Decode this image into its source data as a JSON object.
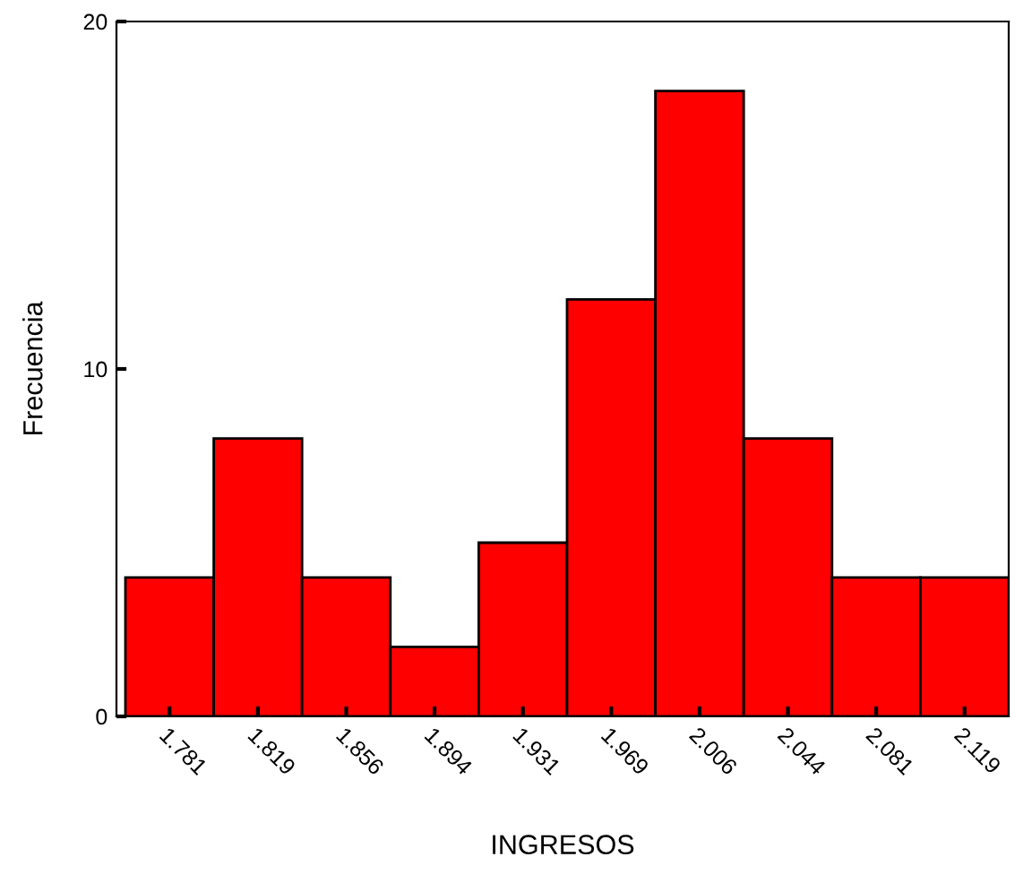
{
  "chart_data": {
    "type": "histogram",
    "xlabel": "INGRESOS",
    "ylabel": "Frecuencia",
    "bins": [
      1.7625,
      1.8,
      1.8375,
      1.875,
      1.9125,
      1.95,
      1.9875,
      2.025,
      2.0625,
      2.1,
      2.1375
    ],
    "values": [
      4,
      8,
      4,
      2,
      5,
      12,
      18,
      8,
      4,
      4
    ],
    "color": "#ff0000",
    "xlim": [
      1.7587,
      2.1375
    ],
    "xticks": [
      {
        "value": 1.78125,
        "label": "1.781"
      },
      {
        "value": 1.81875,
        "label": "1.819"
      },
      {
        "value": 1.85625,
        "label": "1.856"
      },
      {
        "value": 1.89375,
        "label": "1.894"
      },
      {
        "value": 1.93125,
        "label": "1.931"
      },
      {
        "value": 1.96875,
        "label": "1.969"
      },
      {
        "value": 2.00625,
        "label": "2.006"
      },
      {
        "value": 2.04375,
        "label": "2.044"
      },
      {
        "value": 2.08125,
        "label": "2.081"
      },
      {
        "value": 2.11875,
        "label": "2.119"
      }
    ],
    "ylim": [
      0,
      20
    ],
    "yticks": [
      0,
      10,
      20
    ],
    "grid": false
  }
}
